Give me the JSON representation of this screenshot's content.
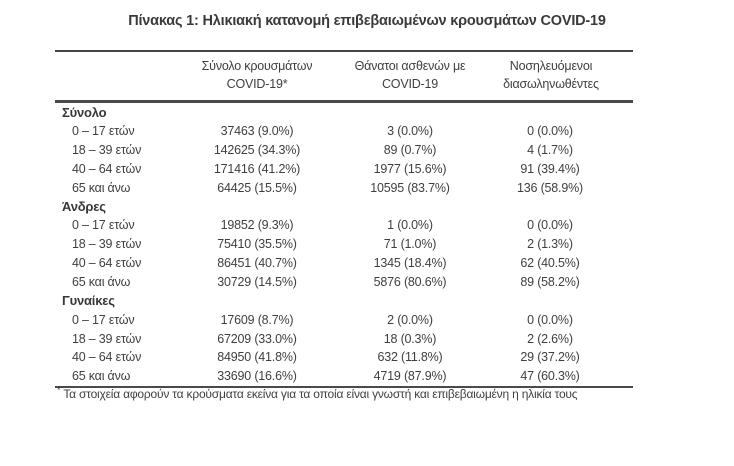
{
  "title": "Πίνακας 1: Ηλικιακή κατανομή επιβεβαιωμένων κρουσμάτων COVID-19",
  "table": {
    "columns": [
      {
        "line1": "Σύνολο κρουσμάτων",
        "line2": "COVID-19*"
      },
      {
        "line1": "Θάνατοι ασθενών με",
        "line2": "COVID-19"
      },
      {
        "line1": "Νοσηλευόμενοι",
        "line2": "διασωληνωθέντες"
      }
    ],
    "sections": [
      {
        "label": "Σύνολο",
        "rows": [
          {
            "label": "0 – 17 ετών",
            "cases": "37463 (9.0%)",
            "deaths": "3 (0.0%)",
            "intubated": "0 (0.0%)"
          },
          {
            "label": "18 – 39 ετών",
            "cases": "142625 (34.3%)",
            "deaths": "89 (0.7%)",
            "intubated": "4 (1.7%)"
          },
          {
            "label": "40 – 64 ετών",
            "cases": "171416 (41.2%)",
            "deaths": "1977 (15.6%)",
            "intubated": "91 (39.4%)"
          },
          {
            "label": "65 και άνω",
            "cases": "64425 (15.5%)",
            "deaths": "10595 (83.7%)",
            "intubated": "136 (58.9%)"
          }
        ]
      },
      {
        "label": "Άνδρες",
        "rows": [
          {
            "label": "0 – 17 ετών",
            "cases": "19852 (9.3%)",
            "deaths": "1 (0.0%)",
            "intubated": "0 (0.0%)"
          },
          {
            "label": "18 – 39 ετών",
            "cases": "75410 (35.5%)",
            "deaths": "71 (1.0%)",
            "intubated": "2 (1.3%)"
          },
          {
            "label": "40 – 64 ετών",
            "cases": "86451 (40.7%)",
            "deaths": "1345 (18.4%)",
            "intubated": "62 (40.5%)"
          },
          {
            "label": "65 και άνω",
            "cases": "30729 (14.5%)",
            "deaths": "5876 (80.6%)",
            "intubated": "89 (58.2%)"
          }
        ]
      },
      {
        "label": "Γυναίκες",
        "rows": [
          {
            "label": "0 – 17 ετών",
            "cases": "17609 (8.7%)",
            "deaths": "2 (0.0%)",
            "intubated": "0 (0.0%)"
          },
          {
            "label": "18 – 39 ετών",
            "cases": "67209 (33.0%)",
            "deaths": "18 (0.3%)",
            "intubated": "2 (2.6%)"
          },
          {
            "label": "40 – 64 ετών",
            "cases": "84950 (41.8%)",
            "deaths": "632 (11.8%)",
            "intubated": "29 (37.2%)"
          },
          {
            "label": "65 και άνω",
            "cases": "33690 (16.6%)",
            "deaths": "4719 (87.9%)",
            "intubated": "47 (60.3%)"
          }
        ]
      }
    ]
  },
  "footnote": {
    "marker": "*",
    "text": "Τα στοιχεία αφορούν τα κρούσματα εκείνα για τα οποία είναι γνωστή και επιβεβαιωμένη η ηλικία τους"
  },
  "colors": {
    "text": "#3f3f3f",
    "rule": "#4a4a4a",
    "background": "#ffffff"
  }
}
